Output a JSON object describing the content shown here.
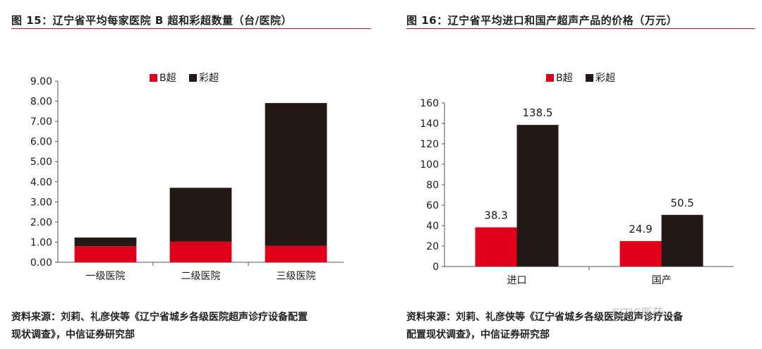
{
  "figures": [
    {
      "title": "图 15：辽宁省平均每家医院 B 超和彩超数量（台/医院）",
      "source_line1": "资料来源：刘莉、礼彦侠等《辽宁省城乡各级医院超声诊疗设备配置",
      "source_line2": "现状调查》，中信证券研究部"
    },
    {
      "title": "图 16：辽宁省平均进口和国产超声产品的价格（万元）",
      "source_line1": "资料来源：刘莉、礼彦侠等《辽宁省城乡各级医院超声诊疗设备",
      "source_line2": "配置现状调查》，中信证券研究部"
    }
  ],
  "watermark": "CITIC医药",
  "colors": {
    "b_ultrasound": "#e1001a",
    "color_doppler": "#231815",
    "rule": "#c8102e"
  },
  "chart_data": [
    {
      "type": "bar",
      "stacked": true,
      "categories": [
        "一级医院",
        "二级医院",
        "三级医院"
      ],
      "series": [
        {
          "name": "B超",
          "values": [
            0.8,
            1.02,
            0.82
          ]
        },
        {
          "name": "彩超",
          "values": [
            0.43,
            2.68,
            7.09
          ]
        }
      ],
      "ylim": [
        0,
        9
      ],
      "yticks": [
        "0.00",
        "1.00",
        "2.00",
        "3.00",
        "4.00",
        "5.00",
        "6.00",
        "7.00",
        "8.00",
        "9.00"
      ],
      "legend": "top-center",
      "grid": false
    },
    {
      "type": "bar",
      "stacked": false,
      "categories": [
        "进口",
        "国产"
      ],
      "series": [
        {
          "name": "B超",
          "values": [
            38.3,
            24.9
          ],
          "labels": [
            "38.3",
            "24.9"
          ]
        },
        {
          "name": "彩超",
          "values": [
            138.5,
            50.5
          ],
          "labels": [
            "138.5",
            "50.5"
          ]
        }
      ],
      "ylim": [
        0,
        160
      ],
      "yticks": [
        "0",
        "20",
        "40",
        "60",
        "80",
        "100",
        "120",
        "140",
        "160"
      ],
      "legend": "top-center",
      "grid": false
    }
  ]
}
